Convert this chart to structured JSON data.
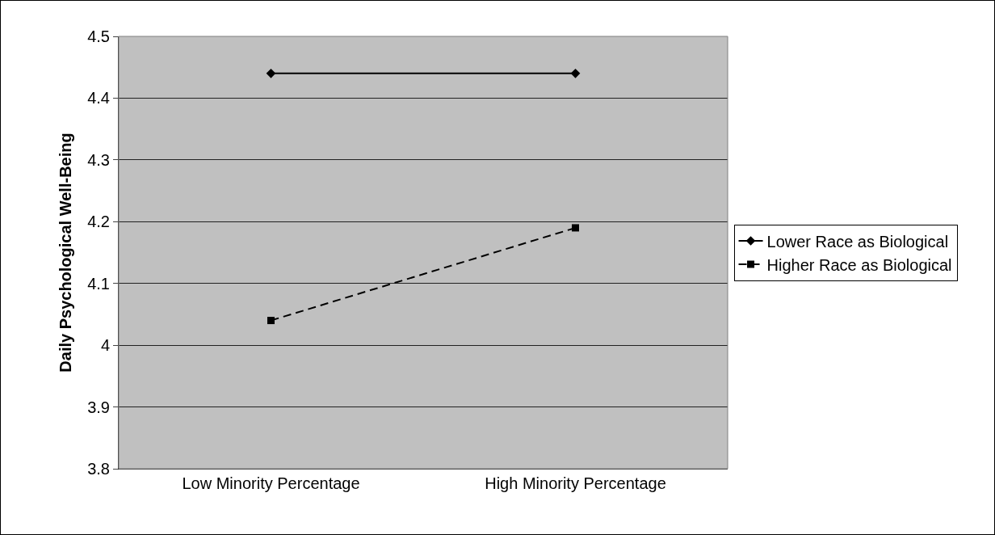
{
  "chart_data": {
    "type": "line",
    "ylabel": "Daily Psychological Well-Being",
    "categories": [
      "Low Minority Percentage",
      "High Minority Percentage"
    ],
    "series": [
      {
        "name": "Lower Race as Biological",
        "color": "#000000",
        "values": [
          4.44,
          4.44
        ],
        "marker": "diamond",
        "line_style": "solid"
      },
      {
        "name": "Higher Race as Biological",
        "color": "#000000",
        "values": [
          4.04,
          4.19
        ],
        "marker": "square",
        "line_style": "dashed"
      }
    ],
    "ylim": [
      3.8,
      4.5
    ],
    "yticks": [
      3.8,
      3.9,
      4.1,
      4.2,
      4.3,
      4.4,
      4.5,
      {
        "value": 4.0,
        "label": "4"
      }
    ],
    "grid": "y",
    "legend": "right"
  }
}
